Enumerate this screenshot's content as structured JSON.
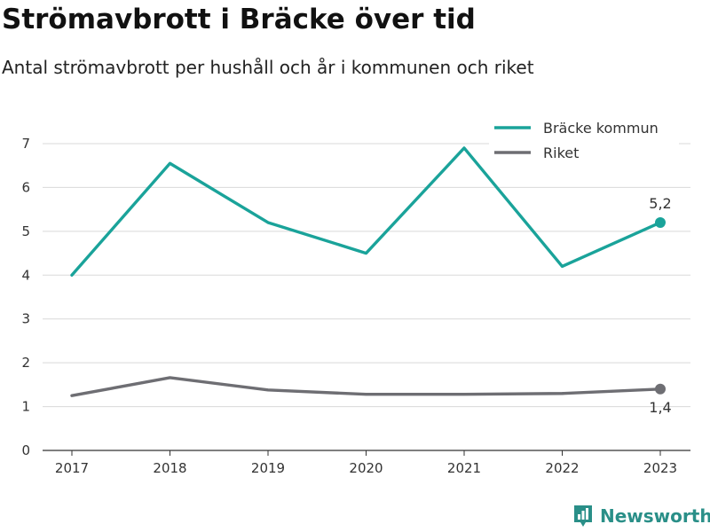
{
  "header": {
    "title": "Strömavbrott i Bräcke över tid",
    "subtitle": "Antal strömavbrott per hushåll och år i kommunen och riket"
  },
  "brand": {
    "name": "Newsworthy",
    "color": "#2a8f88"
  },
  "chart_data": {
    "type": "line",
    "x": [
      "2017",
      "2018",
      "2019",
      "2020",
      "2021",
      "2022",
      "2023"
    ],
    "ylim": [
      0,
      7
    ],
    "yticks": [
      0,
      1,
      2,
      3,
      4,
      5,
      6,
      7
    ],
    "grid": true,
    "legend_position": "top-right",
    "series": [
      {
        "name": "Bräcke kommun",
        "color": "#1aa39a",
        "values": [
          4.0,
          6.55,
          5.2,
          4.5,
          6.9,
          4.2,
          5.2
        ],
        "end_label": "5,2"
      },
      {
        "name": "Riket",
        "color": "#6e6e73",
        "values": [
          1.25,
          1.66,
          1.38,
          1.28,
          1.28,
          1.3,
          1.4
        ],
        "end_label": "1,4"
      }
    ]
  }
}
